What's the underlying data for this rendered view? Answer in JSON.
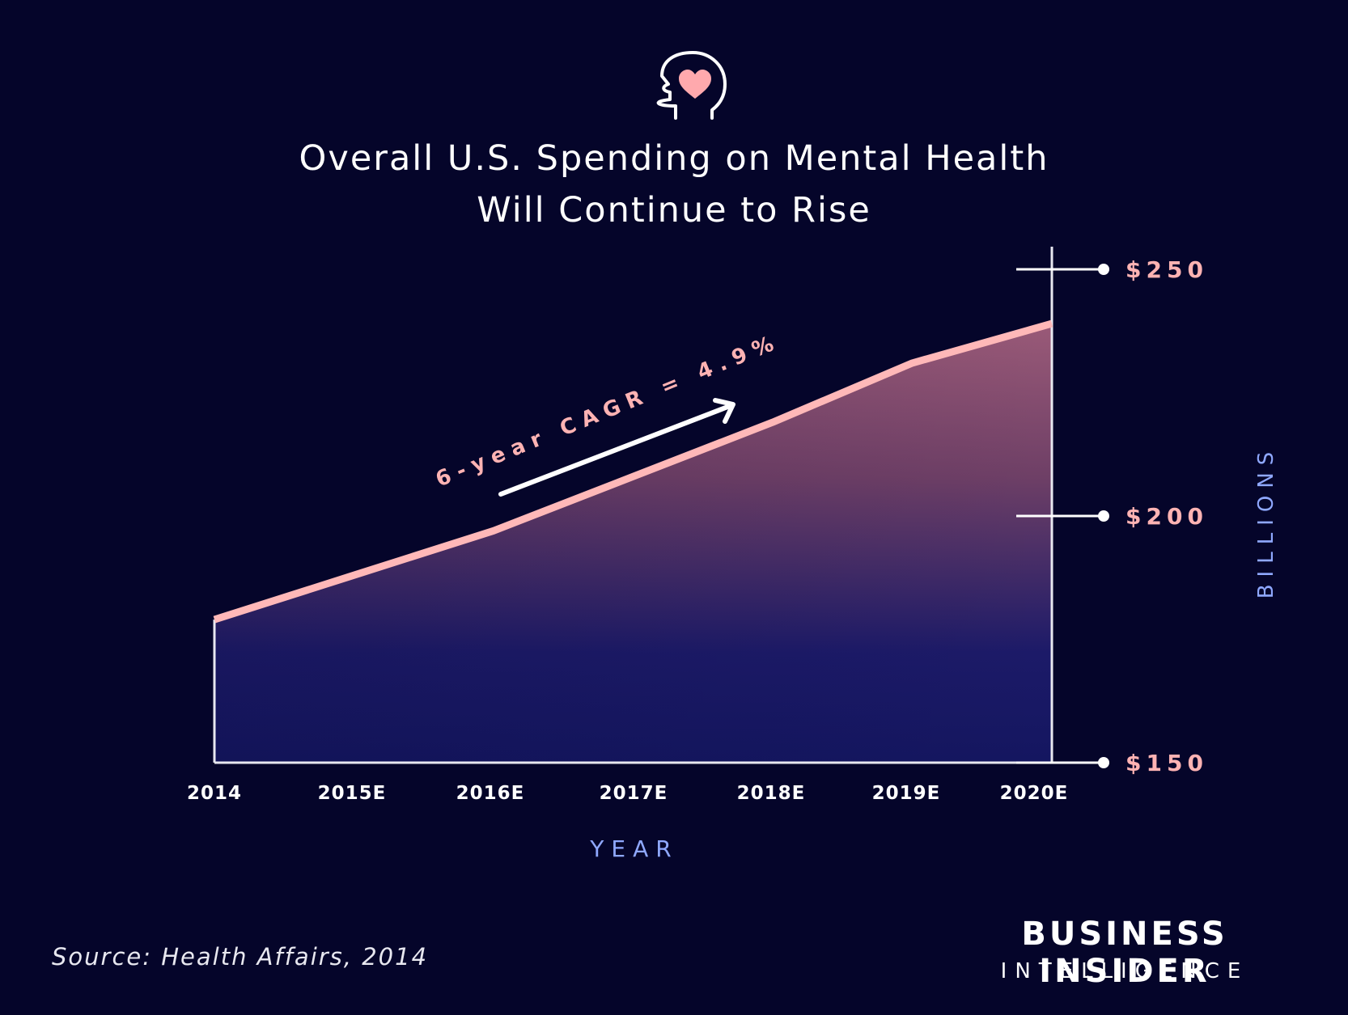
{
  "chart_data": {
    "type": "area",
    "title_lines": [
      "Overall U.S. Spending on Mental Health",
      "Will Continue to Rise"
    ],
    "categories": [
      "2014",
      "2015E",
      "2016E",
      "2017E",
      "2018E",
      "2019E",
      "2020E"
    ],
    "series": [
      {
        "values": [
          179,
          188,
          197,
          208,
          219,
          231,
          239
        ]
      }
    ],
    "xlabel": "YEAR",
    "ylabel": "BILLIONS",
    "ylim": [
      150,
      250
    ],
    "yticks": [
      150,
      200,
      250
    ],
    "ytick_labels": [
      "$150",
      "$200",
      "$250"
    ],
    "y_axis_side": "right",
    "grid": false,
    "annotation": "6-year CAGR = 4.9%"
  },
  "source": "Source: Health Affairs, 2014",
  "brand": {
    "line1": "BUSINESS INSIDER",
    "line2": "INTELLIGENCE"
  },
  "icon": "head-heart-icon",
  "colors": {
    "background": "#05052a",
    "line": "#ffb8b8",
    "tick_label": "#ffb3b3",
    "axis_label": "#8fa8ff",
    "area_top": "#9a5a78",
    "area_bottom": "#141660"
  }
}
